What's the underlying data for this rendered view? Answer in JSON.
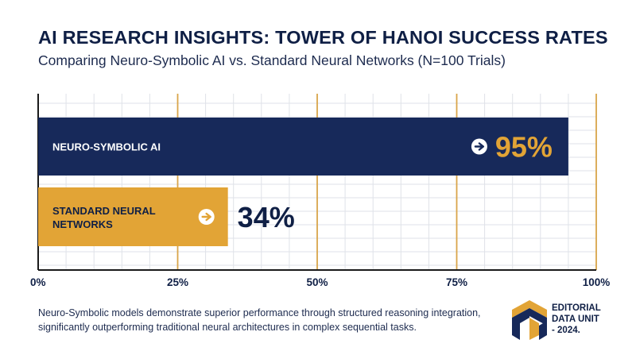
{
  "title": "AI RESEARCH INSIGHTS: TOWER OF HANOI SUCCESS RATES",
  "subtitle": "Comparing Neuro-Symbolic AI vs. Standard Neural Networks (N=100 Trials)",
  "chart_data": {
    "type": "bar",
    "orientation": "horizontal",
    "categories": [
      "NEURO-SYMBOLIC AI",
      "STANDARD NEURAL NETWORKS"
    ],
    "values": [
      95,
      34
    ],
    "value_labels": [
      "95%",
      "34%"
    ],
    "x_ticks": [
      "0%",
      "25%",
      "50%",
      "75%",
      "100%"
    ],
    "xlim": [
      0,
      100
    ],
    "grid": true,
    "colors": {
      "bar_1": "#17295a",
      "bar_2": "#e2a436",
      "gridline": "#dfe2e8",
      "major_gridline": "#d9a54a",
      "label_on_dark": "#e2a436"
    }
  },
  "footnote": "Neuro-Symbolic models demonstrate superior performance through structured reasoning integration, significantly outperforming traditional neural architectures in complex sequential tasks.",
  "logo": {
    "line1": "EDITORIAL",
    "line2": "DATA UNIT",
    "line3": "- 2024."
  }
}
